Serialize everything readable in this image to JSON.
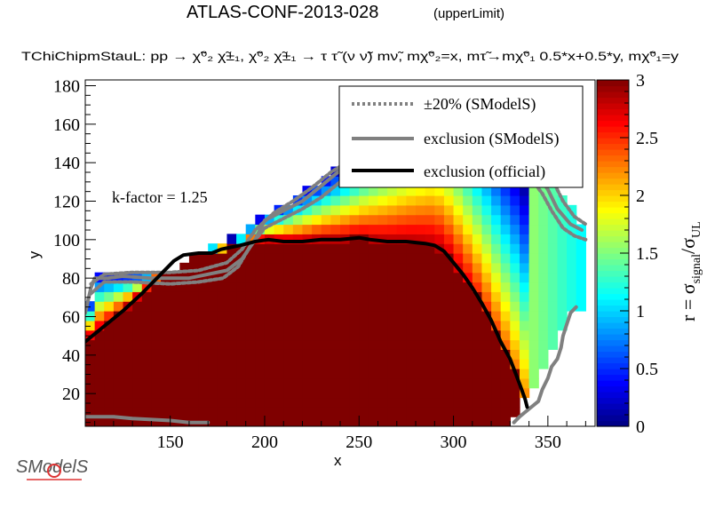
{
  "title": "ATLAS-CONF-2013-028",
  "title_tag": "(upperLimit)",
  "subtitle": "TChiChipmStauL: pp → χ̃⁰₂ χ̃±₁, χ̃⁰₂ χ̃±₁ → τ τ̃ (ν ν̃) mν̃, mχ̃⁰₂=x, mτ̃→mχ̃⁰₁ 0.5*x+0.5*y, mχ̃⁰₁=y",
  "k_factor": "k-factor = 1.25",
  "logo_text": "SModelS",
  "colors": {
    "official": "#000000",
    "smodels": "#808080",
    "band": "#808080",
    "band_right": "#c8c8c8"
  },
  "chart_data": {
    "type": "heatmap",
    "xlabel": "x",
    "ylabel": "y",
    "zlabel": "r = σsignal/σUL",
    "xlim": [
      105,
      375
    ],
    "ylim": [
      3,
      183
    ],
    "zlim": [
      0,
      3
    ],
    "x_ticks": [
      150,
      200,
      250,
      300,
      350
    ],
    "y_ticks": [
      20,
      40,
      60,
      80,
      100,
      120,
      140,
      160,
      180
    ],
    "z_ticks": [
      0,
      0.5,
      1,
      1.5,
      2,
      2.5,
      3
    ],
    "colormap": [
      "#00007f",
      "#0000ff",
      "#007fff",
      "#00ffff",
      "#7fff7f",
      "#ffff00",
      "#ff7f00",
      "#ff0000",
      "#7f0000"
    ],
    "cell_size": 5,
    "cell_value_model": "r(x,y) = clipped; r>3 inside official exclusion, decreasing toward upper and right boundary",
    "legend": {
      "position": "top-right",
      "entries": [
        {
          "label": "±20% (SModelS)",
          "style": "dotted",
          "color": "#808080"
        },
        {
          "label": "exclusion (SModelS)",
          "style": "solid",
          "color": "#808080"
        },
        {
          "label": "exclusion (official)",
          "style": "solid",
          "color": "#000000"
        }
      ]
    },
    "series": [
      {
        "name": "exclusion (official)",
        "points": [
          [
            105,
            47
          ],
          [
            115,
            55
          ],
          [
            125,
            63
          ],
          [
            135,
            72
          ],
          [
            145,
            82
          ],
          [
            152,
            89
          ],
          [
            157,
            92
          ],
          [
            165,
            93
          ],
          [
            172,
            93
          ],
          [
            177,
            95
          ],
          [
            187,
            97
          ],
          [
            195,
            99
          ],
          [
            202,
            100
          ],
          [
            210,
            99
          ],
          [
            220,
            99
          ],
          [
            230,
            100
          ],
          [
            240,
            100
          ],
          [
            250,
            101
          ],
          [
            256,
            100
          ],
          [
            265,
            99
          ],
          [
            275,
            99
          ],
          [
            285,
            98
          ],
          [
            290,
            97
          ],
          [
            295,
            94
          ],
          [
            300,
            88
          ],
          [
            305,
            82
          ],
          [
            310,
            75
          ],
          [
            315,
            67
          ],
          [
            320,
            58
          ],
          [
            325,
            47
          ],
          [
            330,
            38
          ],
          [
            335,
            25
          ],
          [
            338,
            17
          ],
          [
            339,
            13
          ]
        ]
      },
      {
        "name": "exclusion (SModelS)",
        "points": [
          [
            105,
            62
          ],
          [
            108,
            75
          ],
          [
            110,
            80
          ],
          [
            117,
            80
          ],
          [
            125,
            81
          ],
          [
            140,
            80
          ],
          [
            150,
            80
          ],
          [
            160,
            80
          ],
          [
            170,
            82
          ],
          [
            180,
            84
          ],
          [
            188,
            90
          ],
          [
            195,
            100
          ],
          [
            200,
            110
          ],
          [
            210,
            115
          ],
          [
            220,
            120
          ],
          [
            230,
            128
          ],
          [
            240,
            136
          ],
          [
            250,
            140
          ],
          [
            260,
            144
          ],
          [
            270,
            147
          ],
          [
            280,
            148
          ],
          [
            295,
            149
          ],
          [
            310,
            150
          ],
          [
            325,
            148
          ],
          [
            335,
            142
          ],
          [
            345,
            133
          ],
          [
            350,
            126
          ],
          [
            355,
            116
          ],
          [
            362,
            108
          ],
          [
            368,
            105
          ]
        ]
      },
      {
        "name": "exclusion (SModelS) lower",
        "points": [
          [
            105,
            8
          ],
          [
            120,
            8
          ],
          [
            130,
            7
          ],
          [
            150,
            6
          ],
          [
            160,
            5
          ],
          [
            170,
            5
          ]
        ]
      },
      {
        "name": "exclusion (SModelS) right",
        "points": [
          [
            332,
            5
          ],
          [
            335,
            8
          ],
          [
            340,
            12
          ],
          [
            345,
            16
          ],
          [
            347,
            22
          ],
          [
            350,
            28
          ],
          [
            352,
            34
          ],
          [
            355,
            38
          ],
          [
            357,
            44
          ],
          [
            358,
            50
          ],
          [
            360,
            56
          ],
          [
            362,
            62
          ],
          [
            365,
            65
          ]
        ]
      },
      {
        "name": "±20% upper",
        "points": [
          [
            108,
            77
          ],
          [
            115,
            82
          ],
          [
            130,
            83
          ],
          [
            150,
            83
          ],
          [
            165,
            84
          ],
          [
            180,
            88
          ],
          [
            188,
            95
          ],
          [
            195,
            105
          ],
          [
            205,
            114
          ],
          [
            215,
            120
          ],
          [
            225,
            127
          ],
          [
            235,
            135
          ],
          [
            245,
            141
          ],
          [
            255,
            146
          ],
          [
            265,
            150
          ],
          [
            280,
            153
          ],
          [
            295,
            155
          ],
          [
            310,
            157
          ],
          [
            325,
            155
          ],
          [
            335,
            149
          ],
          [
            345,
            140
          ],
          [
            352,
            132
          ],
          [
            358,
            120
          ],
          [
            364,
            112
          ],
          [
            370,
            108
          ]
        ]
      },
      {
        "name": "±20% lower",
        "points": [
          [
            108,
            72
          ],
          [
            115,
            78
          ],
          [
            130,
            78
          ],
          [
            150,
            77
          ],
          [
            165,
            78
          ],
          [
            178,
            80
          ],
          [
            186,
            86
          ],
          [
            192,
            96
          ],
          [
            200,
            106
          ],
          [
            210,
            111
          ],
          [
            220,
            116
          ],
          [
            230,
            122
          ],
          [
            240,
            130
          ],
          [
            250,
            134
          ],
          [
            260,
            138
          ],
          [
            275,
            141
          ],
          [
            295,
            143
          ],
          [
            315,
            144
          ],
          [
            330,
            141
          ],
          [
            340,
            133
          ],
          [
            347,
            124
          ],
          [
            352,
            115
          ],
          [
            358,
            106
          ],
          [
            364,
            102
          ],
          [
            370,
            100
          ]
        ]
      }
    ]
  }
}
